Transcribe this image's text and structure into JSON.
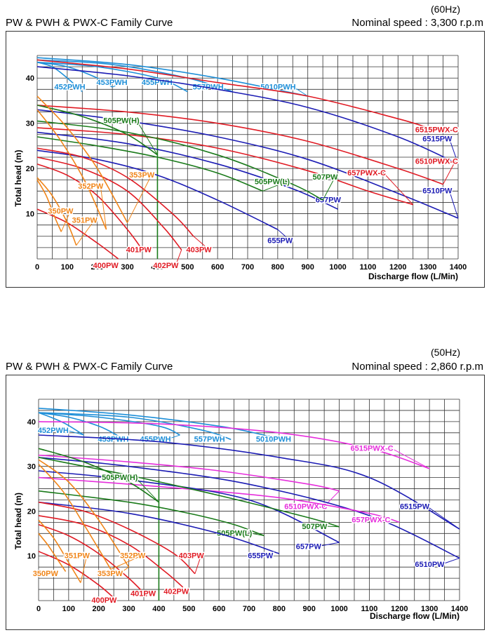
{
  "charts": [
    {
      "title": "PW & PWH & PWX-C Family Curve",
      "frequency": "(60Hz)",
      "speed": "Nominal speed : 3,300 r.p.m"
    },
    {
      "title": "PW & PWH & PWX-C Family Curve",
      "frequency": "(50Hz)",
      "speed": "Nominal speed : 2,860 r.p.m"
    }
  ],
  "colors": {
    "light_blue": "#1e8fd8",
    "red": "#e01b24",
    "dark_blue": "#1c1cb4",
    "green": "#1a7a1a",
    "orange": "#f08519",
    "magenta": "#e62edc",
    "grid": "#333333"
  },
  "chart_data": [
    {
      "type": "line",
      "title": "",
      "xlabel": "Discharge flow (L/Min)",
      "ylabel": "Total head (m)",
      "xlim": [
        0,
        1400
      ],
      "ylim": [
        0,
        45
      ],
      "x_ticks": [
        "0",
        "100",
        "200",
        "300",
        "400",
        "500",
        "600",
        "700",
        "800",
        "900",
        "1000",
        "1100",
        "1200",
        "1300",
        "1400"
      ],
      "y_ticks": [
        "10",
        "20",
        "30",
        "40"
      ],
      "grid": true,
      "reference_line_x": 400,
      "series": [
        {
          "name": "452PWH",
          "color": "light_blue",
          "x": [
            0,
            50,
            100,
            150
          ],
          "y": [
            43.5,
            42.5,
            40,
            37
          ],
          "label_x": 160,
          "label_y": 37.5
        },
        {
          "name": "453PWH",
          "color": "light_blue",
          "x": [
            0,
            100,
            200,
            250
          ],
          "y": [
            43.5,
            42.5,
            40,
            38
          ],
          "label_x": 300,
          "label_y": 38.5
        },
        {
          "name": "455PWH",
          "color": "light_blue",
          "x": [
            0,
            200,
            400,
            500
          ],
          "y": [
            43.5,
            42.5,
            40,
            37
          ],
          "label_x": 450,
          "label_y": 38.5
        },
        {
          "name": "557PWH",
          "color": "light_blue",
          "x": [
            0,
            250,
            500,
            650
          ],
          "y": [
            44,
            43,
            40,
            37
          ],
          "label_x": 620,
          "label_y": 37.5
        },
        {
          "name": "5010PWH",
          "color": "light_blue",
          "x": [
            0,
            300,
            600,
            900
          ],
          "y": [
            44.5,
            43,
            40,
            36
          ],
          "label_x": 860,
          "label_y": 37.5
        },
        {
          "name": "6515PWX-C",
          "color": "red",
          "x": [
            0,
            300,
            600,
            900,
            1200,
            1300
          ],
          "y": [
            44,
            42,
            39,
            36,
            31,
            29
          ],
          "label_x": 1400,
          "label_y": 28
        },
        {
          "name": "6515PW",
          "color": "dark_blue",
          "x": [
            0,
            300,
            600,
            900,
            1200,
            1400
          ],
          "y": [
            42.5,
            40.5,
            37.5,
            33.5,
            27,
            21
          ],
          "label_x": 1380,
          "label_y": 26
        },
        {
          "name": "6510PWX-C",
          "color": "red",
          "x": [
            0,
            300,
            600,
            900,
            1200,
            1350
          ],
          "y": [
            34,
            32.5,
            30,
            26,
            20,
            16.5
          ],
          "label_x": 1400,
          "label_y": 21
        },
        {
          "name": "6510PW",
          "color": "dark_blue",
          "x": [
            0,
            300,
            600,
            900,
            1200,
            1400
          ],
          "y": [
            33,
            30.5,
            27,
            22,
            14.5,
            9
          ],
          "label_x": 1380,
          "label_y": 14.5
        },
        {
          "name": "657PWX-C",
          "color": "red",
          "x": [
            0,
            300,
            600,
            900,
            1100,
            1250
          ],
          "y": [
            29,
            27.5,
            24.5,
            19.5,
            15,
            12
          ],
          "label_x": 1160,
          "label_y": 18.5
        },
        {
          "name": "657PW",
          "color": "dark_blue",
          "x": [
            0,
            300,
            600,
            850,
            1000
          ],
          "y": [
            28,
            25.5,
            21,
            15.5,
            11
          ],
          "label_x": 1010,
          "label_y": 12.5
        },
        {
          "name": "507PW",
          "color": "green",
          "x": [
            0,
            300,
            600,
            850,
            950
          ],
          "y": [
            30.5,
            28,
            23,
            16.5,
            13
          ],
          "label_x": 1000,
          "label_y": 17.5
        },
        {
          "name": "505PW(L)",
          "color": "green",
          "x": [
            0,
            200,
            400,
            600,
            750
          ],
          "y": [
            27,
            25,
            22.5,
            19,
            15
          ],
          "label_x": 840,
          "label_y": 16.5
        },
        {
          "name": "505PW(H)",
          "color": "green",
          "x": [
            0,
            150,
            300,
            400
          ],
          "y": [
            34,
            31.5,
            27.5,
            23
          ],
          "label_x": 340,
          "label_y": 30
        },
        {
          "name": "655PW",
          "color": "dark_blue",
          "x": [
            0,
            200,
            400,
            600,
            800
          ],
          "y": [
            24,
            22,
            18.5,
            13,
            6.5
          ],
          "label_x": 850,
          "label_y": 3.5
        },
        {
          "name": "403PW",
          "color": "red",
          "x": [
            0,
            150,
            300,
            450,
            520
          ],
          "y": [
            24.5,
            22.5,
            18,
            10,
            5
          ],
          "label_x": 580,
          "label_y": 1.5
        },
        {
          "name": "402PW",
          "color": "red",
          "x": [
            0,
            150,
            300,
            420,
            480
          ],
          "y": [
            22.5,
            20,
            15,
            7,
            2
          ],
          "label_x": 470,
          "label_y": -2
        },
        {
          "name": "401PW",
          "color": "red",
          "x": [
            0,
            100,
            200,
            300,
            350
          ],
          "y": [
            21,
            18.5,
            14,
            6.5,
            2
          ],
          "label_x": 380,
          "label_y": 1.5
        },
        {
          "name": "400PW",
          "color": "red",
          "x": [
            0,
            100,
            200,
            270
          ],
          "y": [
            11,
            8,
            3.5,
            0
          ],
          "label_x": 270,
          "label_y": -2
        },
        {
          "name": "353PW",
          "color": "orange",
          "x": [
            0,
            100,
            200,
            300
          ],
          "y": [
            36,
            29,
            20,
            8
          ],
          "label_x": 390,
          "label_y": 18
        },
        {
          "name": "352PW",
          "color": "orange",
          "x": [
            0,
            80,
            160,
            230
          ],
          "y": [
            33,
            26,
            17,
            6.5
          ],
          "label_x": 220,
          "label_y": 15.5
        },
        {
          "name": "351PW",
          "color": "orange",
          "x": [
            0,
            50,
            100,
            130
          ],
          "y": [
            18,
            14,
            8,
            3
          ],
          "label_x": 200,
          "label_y": 8
        },
        {
          "name": "350PW",
          "color": "orange",
          "x": [
            0,
            30,
            60,
            80
          ],
          "y": [
            17.5,
            14,
            9,
            6
          ],
          "label_x": 120,
          "label_y": 10
        }
      ]
    },
    {
      "type": "line",
      "title": "",
      "xlabel": "Discharge flow (L/Min)",
      "ylabel": "Total head (m)",
      "xlim": [
        0,
        1400
      ],
      "ylim": [
        0,
        45
      ],
      "x_ticks": [
        "0",
        "100",
        "200",
        "300",
        "400",
        "500",
        "600",
        "700",
        "800",
        "900",
        "1000",
        "1100",
        "1200",
        "1300",
        "1400"
      ],
      "y_ticks": [
        "10",
        "20",
        "30",
        "40"
      ],
      "grid": true,
      "reference_line_x": 400,
      "series": [
        {
          "name": "452PWH",
          "color": "light_blue",
          "x": [
            0,
            40,
            90,
            150
          ],
          "y": [
            42,
            41,
            39.5,
            37
          ],
          "label_x": 100,
          "label_y": 37.5
        },
        {
          "name": "453PWH",
          "color": "light_blue",
          "x": [
            0,
            100,
            200,
            260
          ],
          "y": [
            42,
            41,
            39,
            37
          ],
          "label_x": 300,
          "label_y": 35.5
        },
        {
          "name": "455PWH",
          "color": "light_blue",
          "x": [
            0,
            200,
            400,
            470
          ],
          "y": [
            42,
            41,
            39,
            37
          ],
          "label_x": 440,
          "label_y": 35.5
        },
        {
          "name": "557PWH",
          "color": "light_blue",
          "x": [
            0,
            300,
            550,
            640
          ],
          "y": [
            42,
            41,
            38,
            36
          ],
          "label_x": 620,
          "label_y": 35.5
        },
        {
          "name": "5010PWH",
          "color": "light_blue",
          "x": [
            0,
            300,
            600,
            750
          ],
          "y": [
            43,
            41.5,
            39,
            37
          ],
          "label_x": 840,
          "label_y": 35.5
        },
        {
          "name": "6515PWX-C",
          "color": "magenta",
          "x": [
            0,
            400,
            800,
            1100,
            1300
          ],
          "y": [
            40,
            39.5,
            37.5,
            34,
            29.5
          ],
          "label_x": 1180,
          "label_y": 33.5
        },
        {
          "name": "6515PW",
          "color": "dark_blue",
          "x": [
            0,
            400,
            800,
            1100,
            1400
          ],
          "y": [
            37,
            35.5,
            32,
            27.5,
            16
          ],
          "label_x": 1300,
          "label_y": 20.5
        },
        {
          "name": "6510PWX-C",
          "color": "magenta",
          "x": [
            0,
            300,
            600,
            900,
            1000
          ],
          "y": [
            32.5,
            31,
            29,
            26,
            24.5
          ],
          "label_x": 960,
          "label_y": 20.5
        },
        {
          "name": "6510PW",
          "color": "dark_blue",
          "x": [
            0,
            300,
            700,
            1100,
            1400
          ],
          "y": [
            32,
            30,
            26,
            19,
            9.5
          ],
          "label_x": 1350,
          "label_y": 7.5
        },
        {
          "name": "657PWX-C",
          "color": "magenta",
          "x": [
            0,
            400,
            800,
            1100,
            1200
          ],
          "y": [
            27.5,
            25.5,
            23,
            19.5,
            17.5
          ],
          "label_x": 1170,
          "label_y": 17.5
        },
        {
          "name": "657PW",
          "color": "dark_blue",
          "x": [
            0,
            300,
            700,
            1000
          ],
          "y": [
            29,
            27,
            22.5,
            13
          ],
          "label_x": 940,
          "label_y": 11.5
        },
        {
          "name": "507PW",
          "color": "green",
          "x": [
            0,
            300,
            600,
            900,
            1000
          ],
          "y": [
            32,
            28,
            23.5,
            18.5,
            16.5
          ],
          "label_x": 960,
          "label_y": 16
        },
        {
          "name": "505PW(L)",
          "color": "green",
          "x": [
            0,
            300,
            500,
            650,
            750
          ],
          "y": [
            24.5,
            22,
            19.5,
            17,
            14.5
          ],
          "label_x": 710,
          "label_y": 14.5
        },
        {
          "name": "505PW(H)",
          "color": "green",
          "x": [
            0,
            150,
            300,
            400
          ],
          "y": [
            34,
            31,
            26.5,
            22
          ],
          "label_x": 330,
          "label_y": 27
        },
        {
          "name": "655PW",
          "color": "dark_blue",
          "x": [
            0,
            300,
            600,
            800
          ],
          "y": [
            22,
            19.5,
            15,
            10.5
          ],
          "label_x": 780,
          "label_y": 9.5
        },
        {
          "name": "403PW",
          "color": "red",
          "x": [
            0,
            150,
            300,
            450,
            520
          ],
          "y": [
            22,
            20,
            16,
            10.5,
            6
          ],
          "label_x": 550,
          "label_y": 9.5
        },
        {
          "name": "402PW",
          "color": "red",
          "x": [
            0,
            150,
            300,
            420,
            480
          ],
          "y": [
            19,
            17,
            12.5,
            6.5,
            3
          ],
          "label_x": 500,
          "label_y": 1.5
        },
        {
          "name": "401PW",
          "color": "red",
          "x": [
            0,
            100,
            200,
            300,
            360
          ],
          "y": [
            17,
            14.5,
            10.5,
            5,
            1
          ],
          "label_x": 390,
          "label_y": 1
        },
        {
          "name": "400PW",
          "color": "red",
          "x": [
            0,
            100,
            200,
            260
          ],
          "y": [
            11,
            8,
            3.5,
            0
          ],
          "label_x": 260,
          "label_y": -0.5
        },
        {
          "name": "353PW",
          "color": "orange",
          "x": [
            0,
            100,
            200,
            300
          ],
          "y": [
            31.5,
            26.5,
            18,
            7.5
          ],
          "label_x": 280,
          "label_y": 5.5
        },
        {
          "name": "352PW",
          "color": "orange",
          "x": [
            0,
            80,
            160,
            240
          ],
          "y": [
            30.5,
            24.5,
            16,
            7
          ],
          "label_x": 355,
          "label_y": 9.5
        },
        {
          "name": "351PW",
          "color": "orange",
          "x": [
            0,
            50,
            100,
            140
          ],
          "y": [
            18,
            14,
            8.5,
            4
          ],
          "label_x": 170,
          "label_y": 9.5
        },
        {
          "name": "350PW",
          "color": "orange",
          "x": [
            0,
            30,
            60,
            90
          ],
          "y": [
            15,
            12.5,
            9.5,
            6.5
          ],
          "label_x": 65,
          "label_y": 5.5
        }
      ]
    }
  ]
}
